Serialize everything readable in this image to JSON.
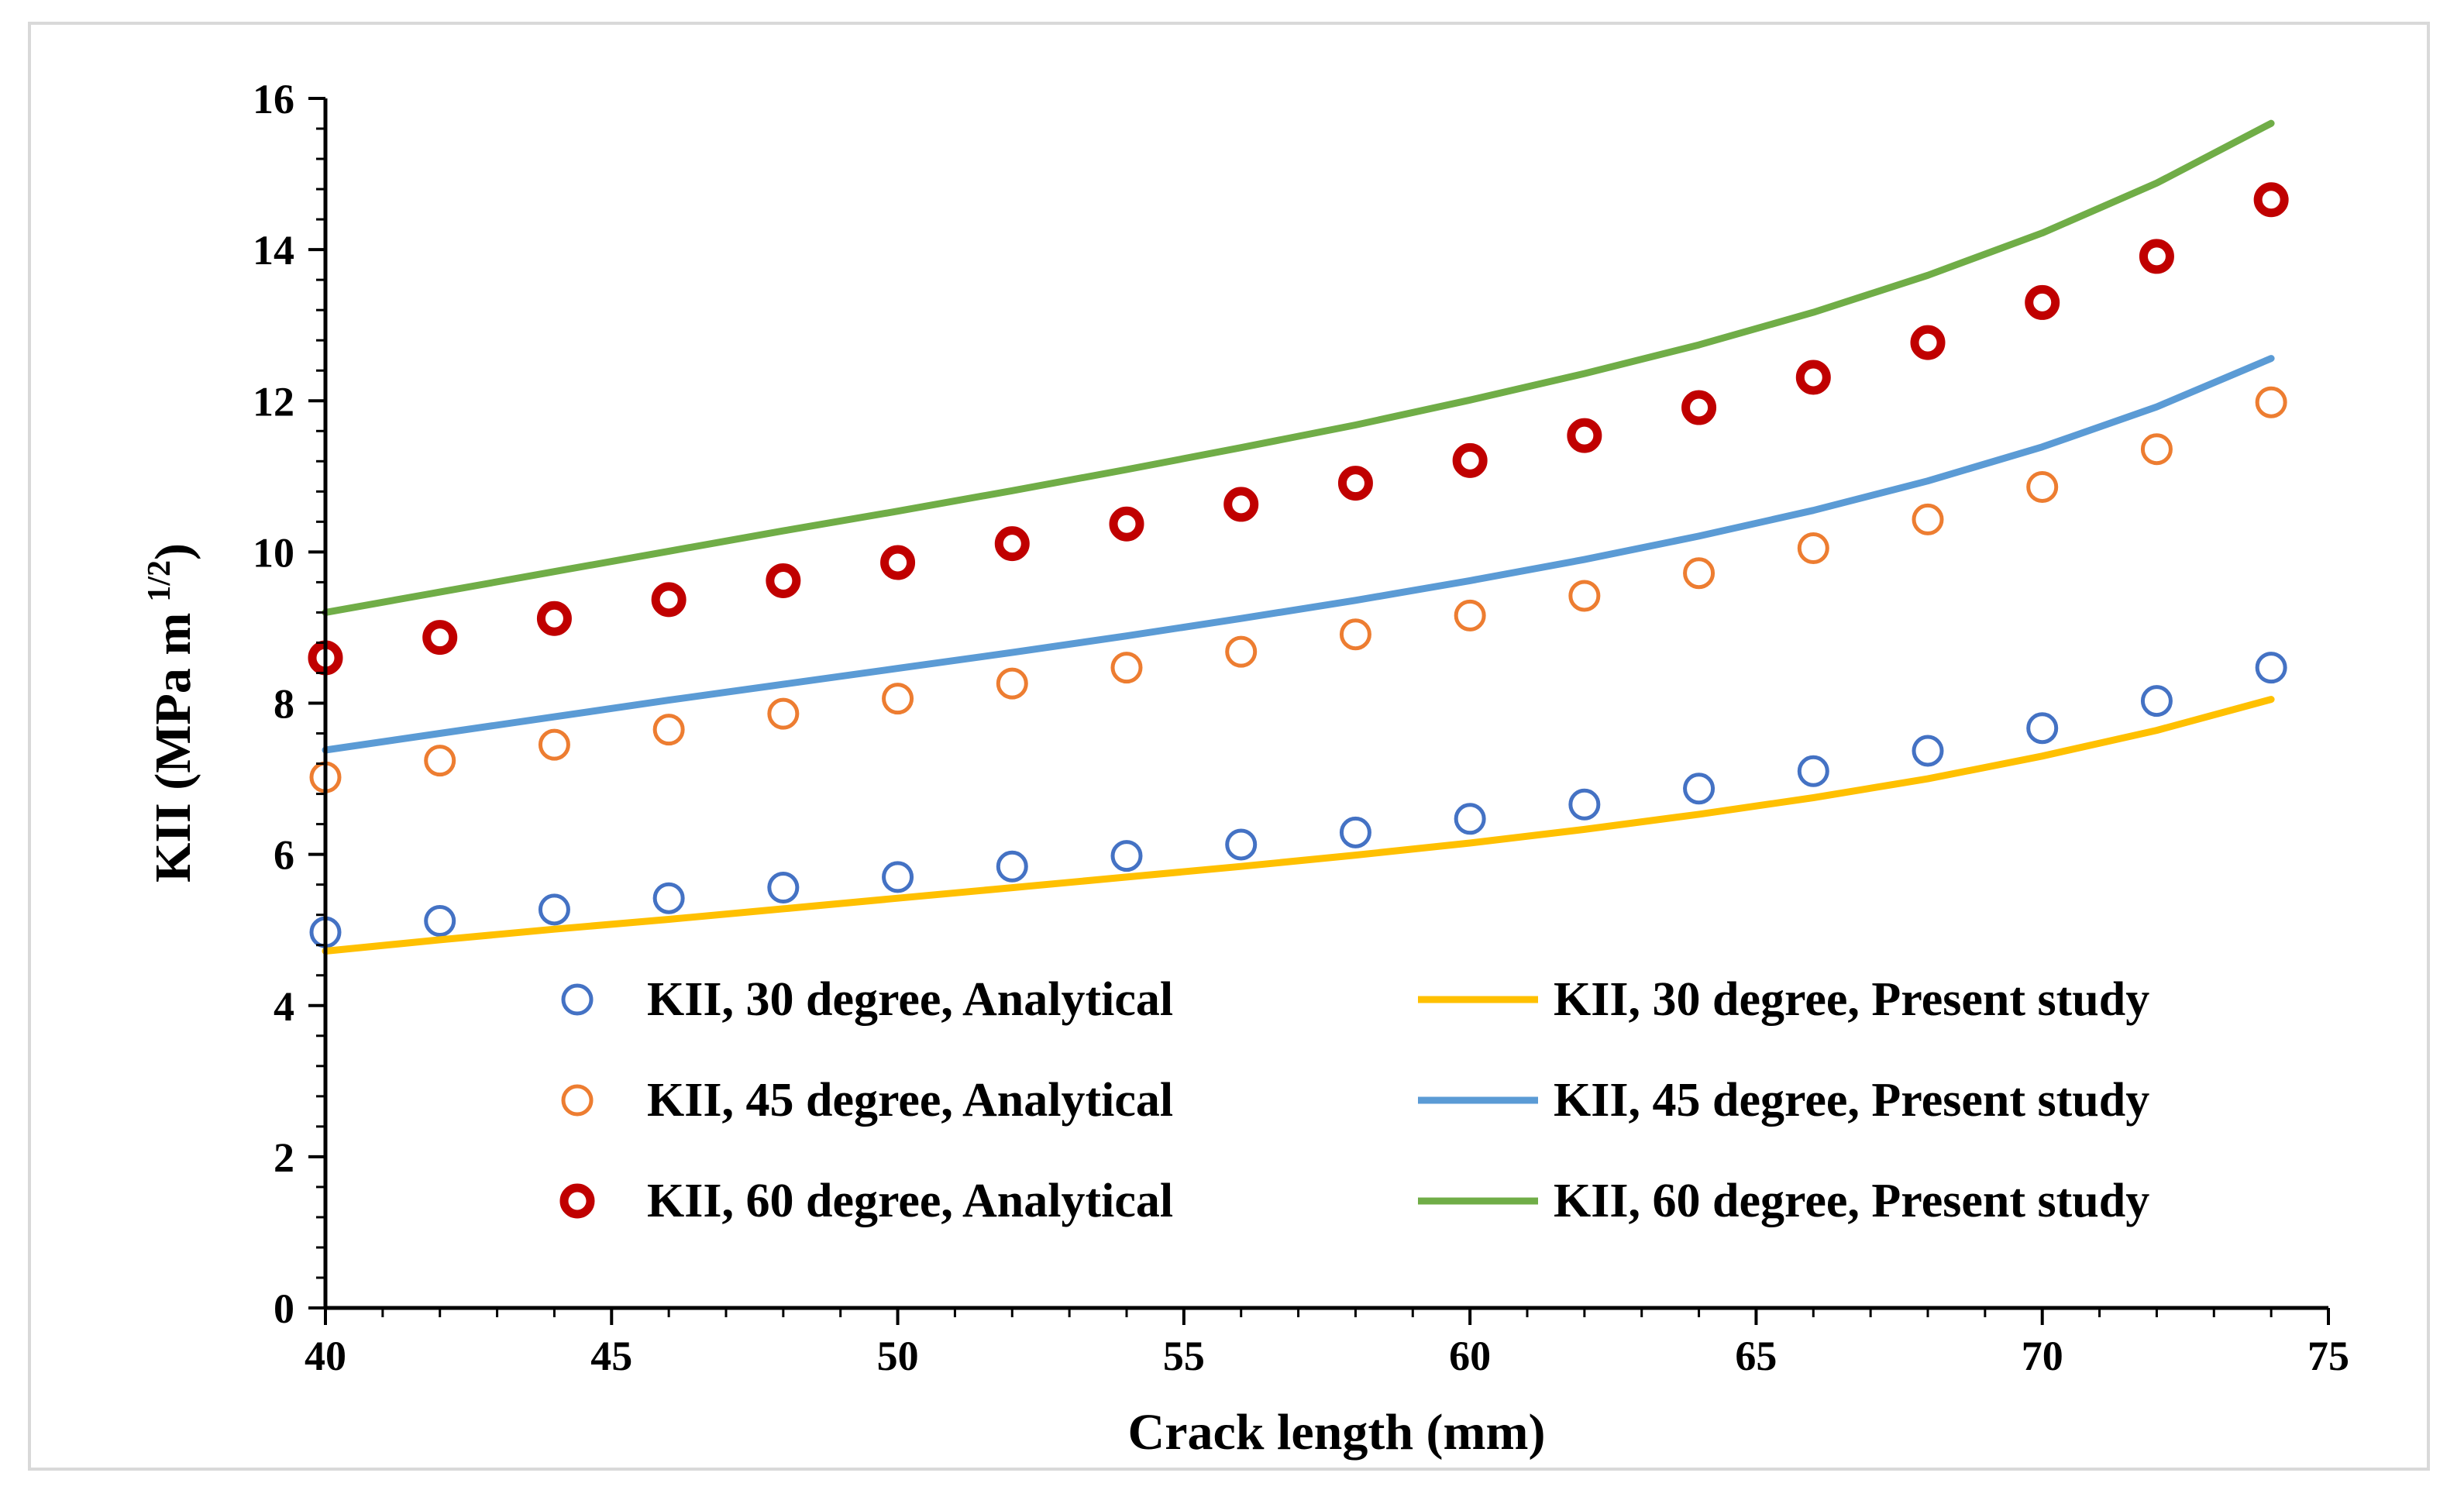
{
  "chart_data": {
    "type": "scatter",
    "title": "",
    "xlabel": "Crack length (mm)",
    "ylabel": "KII (MPa m",
    "ylabel_sup": "1/2",
    "ylabel_close": ")",
    "xlim": [
      40,
      75
    ],
    "ylim": [
      0,
      16
    ],
    "xticks": [
      40,
      45,
      50,
      55,
      60,
      65,
      70,
      75
    ],
    "yticks": [
      0,
      2,
      4,
      6,
      8,
      10,
      12,
      14,
      16
    ],
    "legend_position": "bottom",
    "series": [
      {
        "name": "KII, 30 degree, Analytical",
        "kind": "marker",
        "color": "#4472c4",
        "x": [
          40,
          42,
          44,
          46,
          48,
          50,
          52,
          54,
          56,
          58,
          60,
          62,
          64,
          66,
          68,
          70,
          72,
          74
        ],
        "y": [
          4.97,
          5.12,
          5.27,
          5.42,
          5.56,
          5.7,
          5.84,
          5.98,
          6.13,
          6.29,
          6.47,
          6.66,
          6.87,
          7.1,
          7.37,
          7.67,
          8.03,
          8.47
        ]
      },
      {
        "name": "KII, 45 degree, Analytical",
        "kind": "marker",
        "color": "#ed7d31",
        "x": [
          40,
          42,
          44,
          46,
          48,
          50,
          52,
          54,
          56,
          58,
          60,
          62,
          64,
          66,
          68,
          70,
          72,
          74
        ],
        "y": [
          7.02,
          7.24,
          7.45,
          7.65,
          7.86,
          8.06,
          8.26,
          8.47,
          8.68,
          8.91,
          9.16,
          9.42,
          9.72,
          10.05,
          10.43,
          10.86,
          11.36,
          11.98
        ]
      },
      {
        "name": "KII, 60 degree, Analytical",
        "kind": "marker-bold",
        "color": "#c00000",
        "x": [
          40,
          42,
          44,
          46,
          48,
          50,
          52,
          54,
          56,
          58,
          60,
          62,
          64,
          66,
          68,
          70,
          72,
          74
        ],
        "y": [
          8.6,
          8.87,
          9.12,
          9.37,
          9.62,
          9.86,
          10.11,
          10.37,
          10.63,
          10.91,
          11.21,
          11.54,
          11.91,
          12.31,
          12.77,
          13.3,
          13.91,
          14.66
        ]
      },
      {
        "name": "KII, 30 degree, Present study",
        "kind": "line",
        "color": "#ffc000",
        "x": [
          40,
          42,
          44,
          46,
          48,
          50,
          52,
          54,
          56,
          58,
          60,
          62,
          64,
          66,
          68,
          70,
          72,
          74
        ],
        "y": [
          4.72,
          4.87,
          5.01,
          5.14,
          5.28,
          5.42,
          5.56,
          5.7,
          5.84,
          5.99,
          6.15,
          6.33,
          6.53,
          6.75,
          7.0,
          7.3,
          7.64,
          8.05
        ]
      },
      {
        "name": "KII, 45 degree, Present study",
        "kind": "line",
        "color": "#5b9bd5",
        "x": [
          40,
          42,
          44,
          46,
          48,
          50,
          52,
          54,
          56,
          58,
          60,
          62,
          64,
          66,
          68,
          70,
          72,
          74
        ],
        "y": [
          7.38,
          7.6,
          7.82,
          8.04,
          8.25,
          8.46,
          8.67,
          8.89,
          9.12,
          9.36,
          9.62,
          9.9,
          10.21,
          10.55,
          10.94,
          11.39,
          11.92,
          12.56
        ]
      },
      {
        "name": "KII, 60 degree, Present study",
        "kind": "line",
        "color": "#70ad47",
        "x": [
          40,
          42,
          44,
          46,
          48,
          50,
          52,
          54,
          56,
          58,
          60,
          62,
          64,
          66,
          68,
          70,
          72,
          74
        ],
        "y": [
          9.2,
          9.47,
          9.74,
          10.01,
          10.28,
          10.54,
          10.81,
          11.09,
          11.38,
          11.68,
          12.01,
          12.36,
          12.74,
          13.17,
          13.66,
          14.22,
          14.88,
          15.67
        ]
      }
    ]
  }
}
